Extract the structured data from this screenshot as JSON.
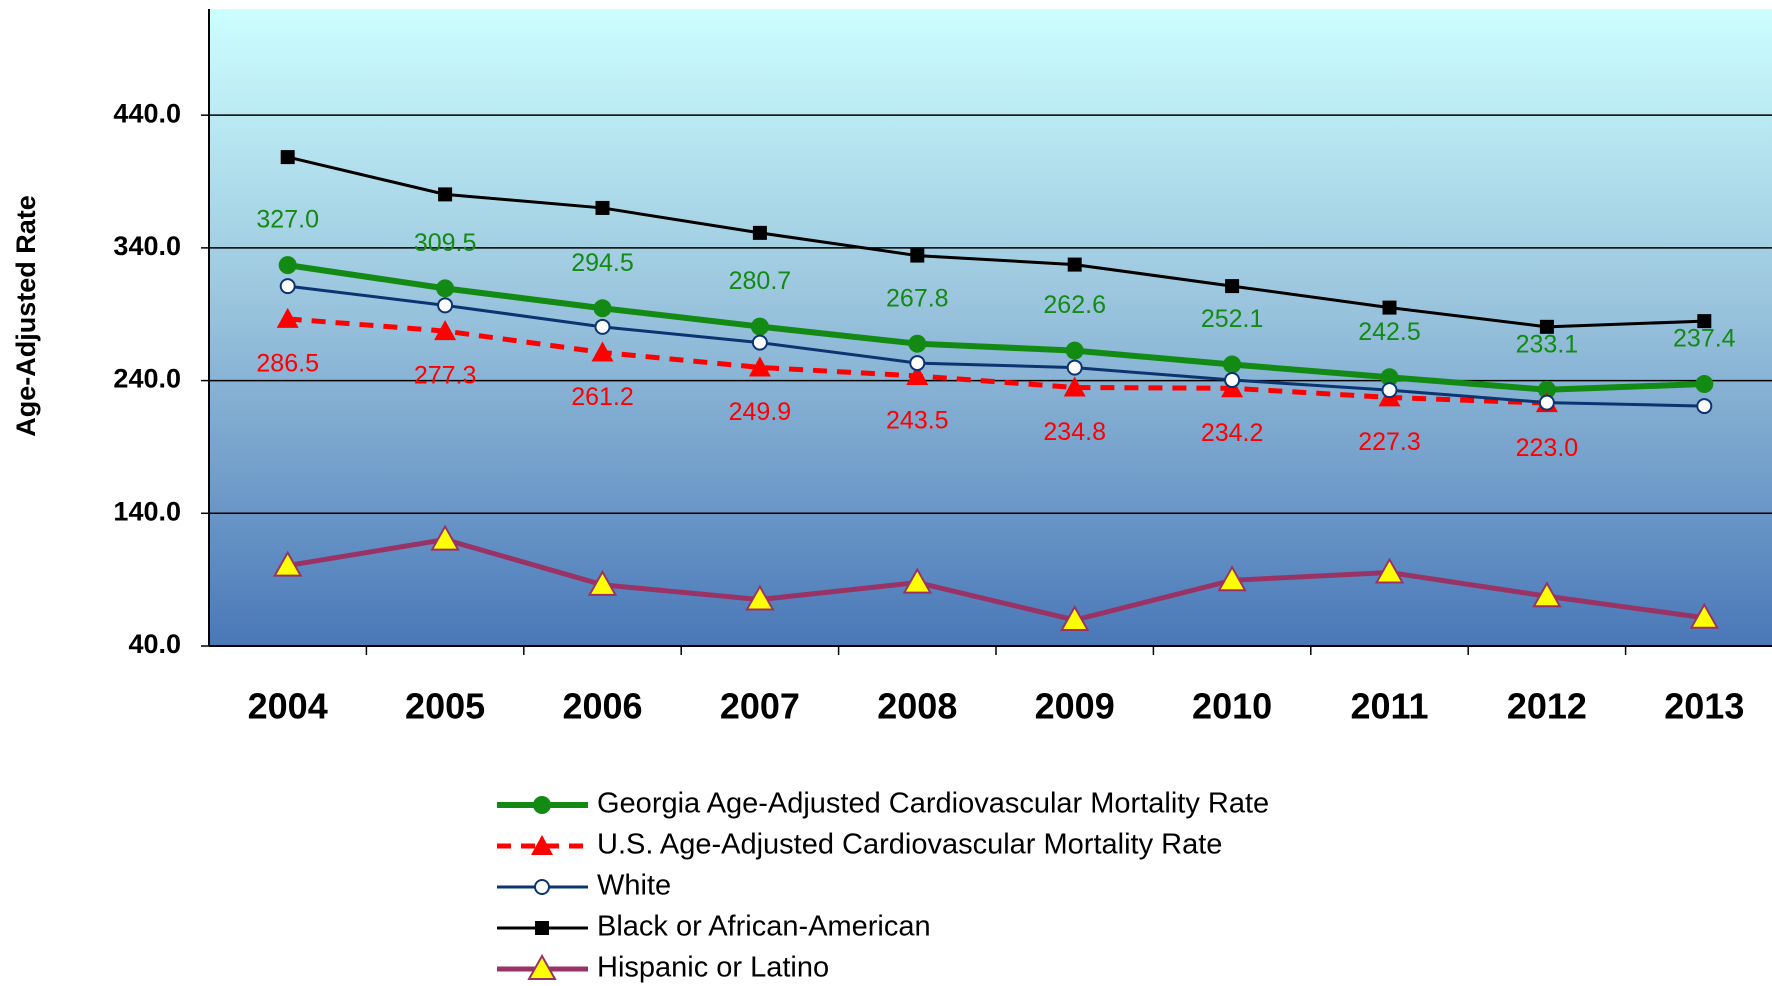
{
  "chart_data": {
    "type": "line",
    "y_label": "Age-Adjusted Rate",
    "categories": [
      "2004",
      "2005",
      "2006",
      "2007",
      "2008",
      "2009",
      "2010",
      "2011",
      "2012",
      "2013"
    ],
    "ylim": [
      40,
      520
    ],
    "yticks": [
      {
        "value": 40,
        "label": "40.0"
      },
      {
        "value": 140,
        "label": "140.0"
      },
      {
        "value": 240,
        "label": "240.0"
      },
      {
        "value": 340,
        "label": "340.0"
      },
      {
        "value": 440,
        "label": "440.0"
      }
    ],
    "grid": true,
    "legend": "bottom",
    "series": [
      {
        "name": "Georgia Age-Adjusted Cardiovascular Mortality Rate",
        "color": "#138a13",
        "marker": "circle",
        "width": 6,
        "label_side": "above",
        "values": [
          327.0,
          309.5,
          294.5,
          280.7,
          267.8,
          262.6,
          252.1,
          242.5,
          233.1,
          237.4
        ],
        "value_labels": [
          "327.0",
          "309.5",
          "294.5",
          "280.7",
          "267.8",
          "262.6",
          "252.1",
          "242.5",
          "233.1",
          "237.4"
        ]
      },
      {
        "name": "U.S. Age-Adjusted Cardiovascular Mortality Rate",
        "color": "#ff0000",
        "marker": "triangle",
        "dashed": true,
        "width": 5,
        "label_side": "below",
        "values": [
          286.5,
          277.3,
          261.2,
          249.9,
          243.5,
          234.8,
          234.2,
          227.3,
          223.0,
          null
        ],
        "value_labels": [
          "286.5",
          "277.3",
          "261.2",
          "249.9",
          "243.5",
          "234.8",
          "234.2",
          "227.3",
          "223.0",
          null
        ]
      },
      {
        "name": "White",
        "color": "#0b3470",
        "marker": "open-circle",
        "width": 3,
        "values": [
          311.2,
          296.7,
          280.5,
          268.6,
          253.2,
          249.8,
          240.4,
          232.8,
          223.4,
          220.8
        ]
      },
      {
        "name": "Black or African-American",
        "color": "#000000",
        "marker": "square",
        "width": 3,
        "values": [
          408.4,
          380.3,
          370.1,
          351.3,
          334.2,
          327.4,
          311.2,
          295.0,
          280.5,
          284.8
        ]
      },
      {
        "name": "Hispanic or Latino",
        "color": "#993366",
        "marker": "yellow-triangle",
        "width": 5,
        "values": [
          100.6,
          120.2,
          86.1,
          75.0,
          87.8,
          59.6,
          89.5,
          95.4,
          77.5,
          61.3
        ]
      }
    ]
  }
}
